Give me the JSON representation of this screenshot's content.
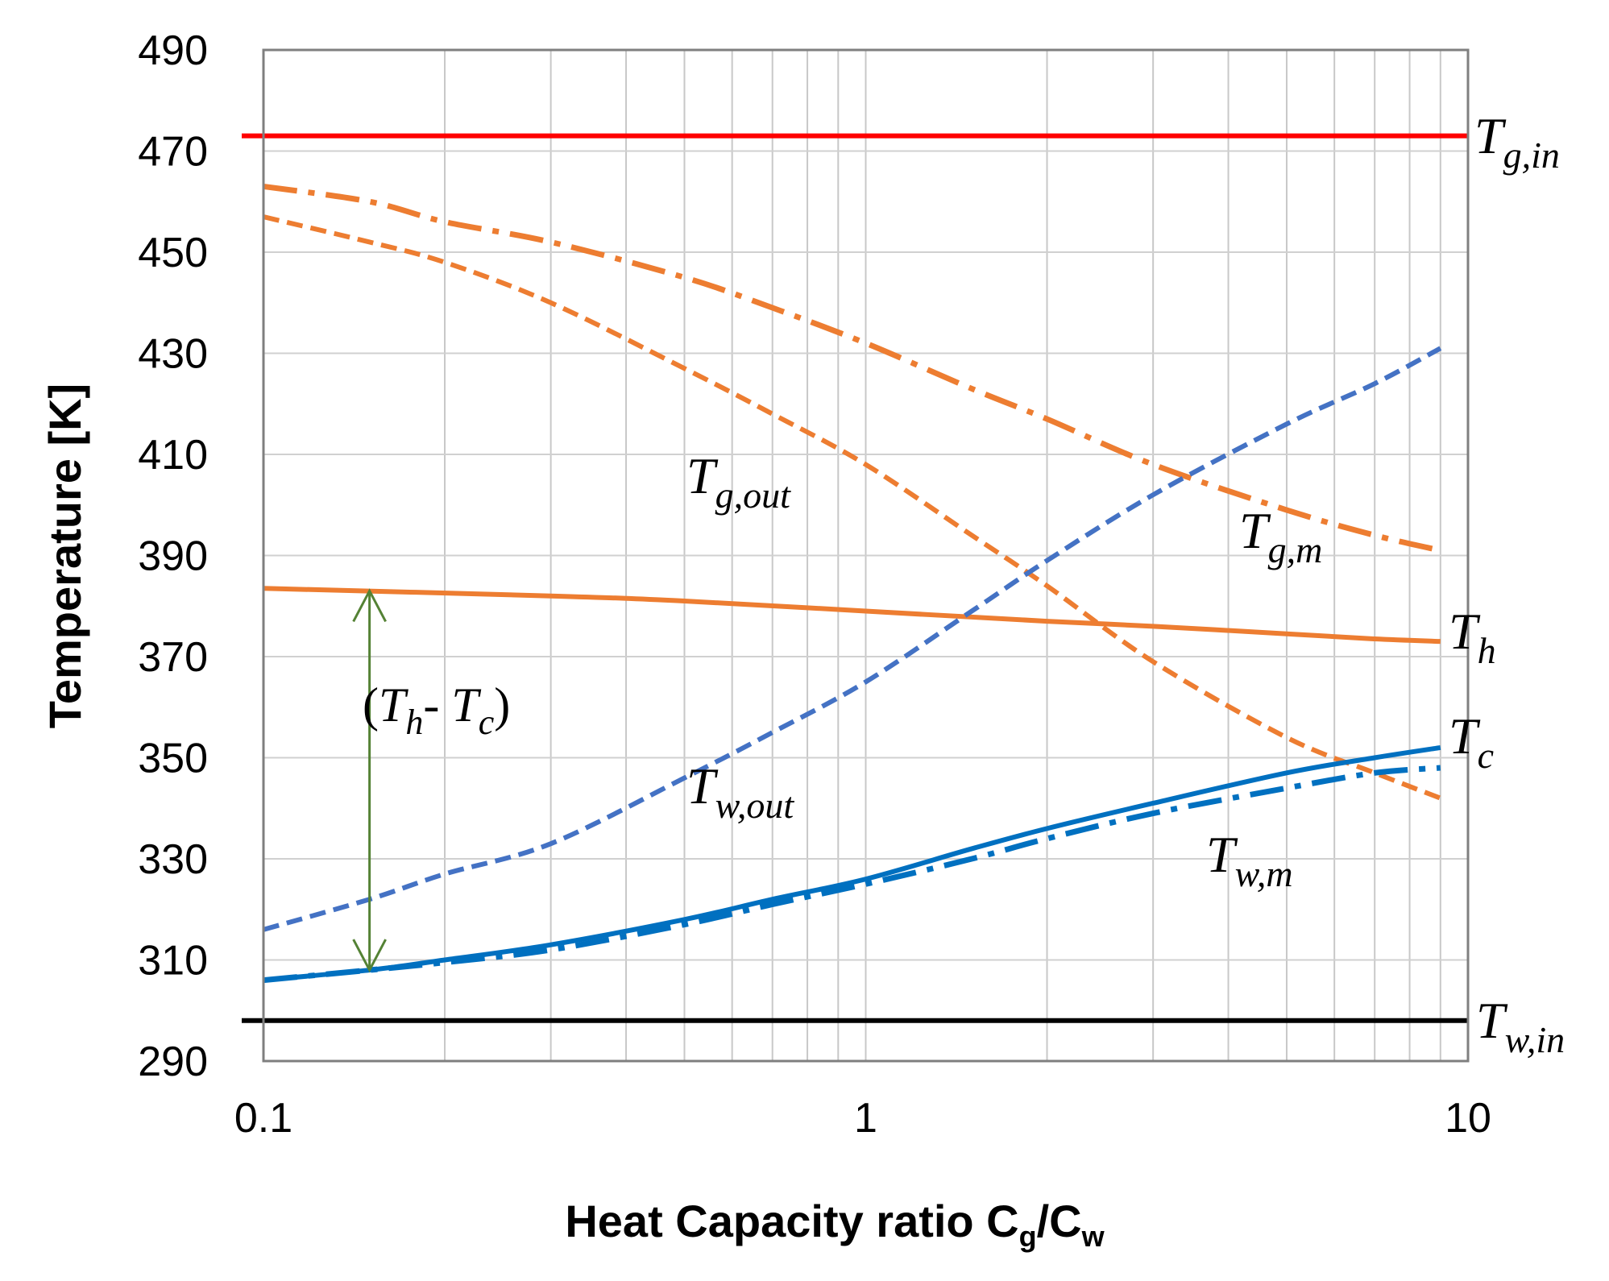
{
  "chart_data": {
    "type": "line",
    "x_scale": "log",
    "xlim": [
      0.1,
      10
    ],
    "ylim": [
      290,
      490
    ],
    "grid": true,
    "x_ticks": [
      "0.1",
      "1",
      "10"
    ],
    "y_ticks": [
      "290",
      "310",
      "330",
      "350",
      "370",
      "390",
      "410",
      "430",
      "450",
      "470",
      "490"
    ],
    "xlabel": {
      "main": "Heat Capacity ratio C",
      "sub1": "g",
      "mid": "/C",
      "sub2": "w"
    },
    "ylabel": "Temperature [K]",
    "series": [
      {
        "label": {
          "base": "T",
          "sub": "g,in"
        },
        "color": "#ff0000",
        "style": "solid",
        "x": [
          0.085,
          10
        ],
        "y": [
          473,
          473
        ]
      },
      {
        "label": {
          "base": "T",
          "sub": "w,in"
        },
        "color": "#000000",
        "style": "solid",
        "x": [
          0.085,
          10
        ],
        "y": [
          298,
          298
        ]
      },
      {
        "label": {
          "base": "T",
          "sub": "g,m"
        },
        "color": "#ed7d31",
        "style": "dashdot",
        "x": [
          0.1,
          0.15,
          0.2,
          0.3,
          0.5,
          0.7,
          1,
          1.5,
          2,
          3,
          5,
          7,
          9
        ],
        "y": [
          463,
          460,
          456,
          452,
          445,
          439,
          432,
          423,
          417,
          408,
          399,
          394,
          391
        ]
      },
      {
        "label": {
          "base": "T",
          "sub": "g,out"
        },
        "color": "#ed7d31",
        "style": "dashed",
        "x": [
          0.1,
          0.15,
          0.2,
          0.3,
          0.5,
          0.7,
          1,
          1.5,
          2,
          3,
          5,
          7,
          9
        ],
        "y": [
          457,
          452,
          448,
          440,
          427,
          418,
          408,
          394,
          384,
          369,
          354,
          347,
          342
        ]
      },
      {
        "label": {
          "base": "T",
          "sub": "h"
        },
        "color": "#ed7d31",
        "style": "solid",
        "x": [
          0.1,
          0.3,
          0.5,
          1,
          2,
          3,
          5,
          7,
          9
        ],
        "y": [
          383.5,
          382,
          381,
          379,
          377,
          376,
          374.5,
          373.5,
          373
        ]
      },
      {
        "label": {
          "base": "T",
          "sub": "w,out"
        },
        "color": "#4472c4",
        "style": "dashed",
        "x": [
          0.1,
          0.15,
          0.2,
          0.3,
          0.5,
          0.7,
          1,
          1.5,
          2,
          3,
          5,
          7,
          9
        ],
        "y": [
          316,
          322,
          327,
          333,
          346,
          355,
          365,
          379,
          389,
          402,
          416,
          424,
          431
        ]
      },
      {
        "label": {
          "base": "T",
          "sub": "c"
        },
        "color": "#0070c0",
        "style": "solid",
        "x": [
          0.1,
          0.15,
          0.2,
          0.3,
          0.5,
          0.7,
          1,
          1.5,
          2,
          3,
          5,
          7,
          9
        ],
        "y": [
          306,
          308,
          310,
          313,
          318,
          322,
          326,
          332,
          336,
          341,
          347,
          350,
          352
        ]
      },
      {
        "label": {
          "base": "T",
          "sub": "w,m"
        },
        "color": "#0070c0",
        "style": "dashdot",
        "x": [
          0.1,
          0.15,
          0.2,
          0.3,
          0.5,
          0.7,
          1,
          1.5,
          2,
          3,
          5,
          7,
          9
        ],
        "y": [
          306,
          308,
          309.5,
          312,
          317,
          321,
          325,
          330,
          334,
          339,
          344,
          347,
          348
        ]
      }
    ],
    "annotation": {
      "text_open": "(",
      "base1": "T",
      "sub1": "h",
      "minus": "- ",
      "base2": "T",
      "sub2": "c",
      "text_close": ")",
      "arrow_x": 0.15,
      "arrow_y_top": 383,
      "arrow_y_bottom": 308,
      "color": "#548235"
    }
  }
}
